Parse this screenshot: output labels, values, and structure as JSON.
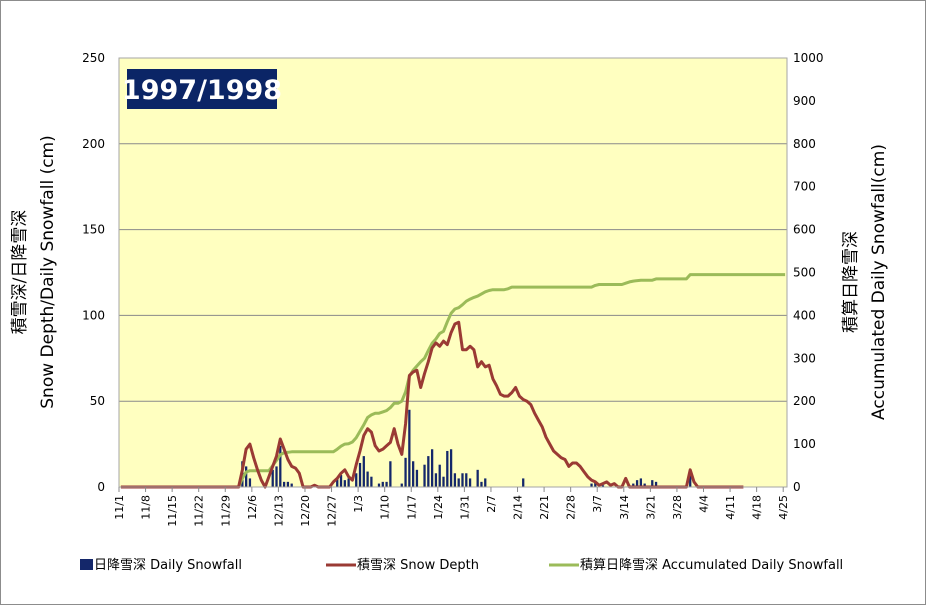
{
  "chart_data": {
    "type": "bar+line",
    "title": "1997/1998",
    "ylabel_left_line1": "積雪深/日降雪深",
    "ylabel_left_line2": "Snow Depth/Daily Snowfall (cm)",
    "ylabel_right_line1": "積算日降雪深",
    "ylabel_right_line2": "Accumulated Daily Snowfall(cm)",
    "ylim_left": [
      0,
      250
    ],
    "yticks_left": [
      0,
      50,
      100,
      150,
      200,
      250
    ],
    "ylim_right": [
      0,
      1000
    ],
    "yticks_right": [
      0,
      100,
      200,
      300,
      400,
      500,
      600,
      700,
      800,
      900,
      1000
    ],
    "x_tick_labels": [
      "11/1",
      "11/8",
      "11/15",
      "11/22",
      "11/29",
      "12/6",
      "12/13",
      "12/20",
      "12/27",
      "1/3",
      "1/10",
      "1/17",
      "1/24",
      "1/31",
      "2/7",
      "2/14",
      "2/21",
      "2/28",
      "3/7",
      "3/14",
      "3/21",
      "3/28",
      "4/4",
      "4/11",
      "4/18",
      "4/25"
    ],
    "x_start": "11/1",
    "day_count": 176,
    "grid": true,
    "legend_position": "bottom",
    "colors": {
      "plot_background": "#ffffc0",
      "daily_snowfall": "#14276a",
      "snow_depth": "#9a3a34",
      "accumulated": "#9bbb59",
      "badge": "#0b2566"
    },
    "series": [
      {
        "name": "日降雪深 Daily Snowfall",
        "type": "bar",
        "axis": "left",
        "points": [
          [
            32,
            15
          ],
          [
            33,
            12
          ],
          [
            34,
            5
          ],
          [
            40,
            10
          ],
          [
            41,
            12
          ],
          [
            42,
            24
          ],
          [
            43,
            3
          ],
          [
            44,
            3
          ],
          [
            45,
            2
          ],
          [
            57,
            5
          ],
          [
            58,
            7
          ],
          [
            59,
            4
          ],
          [
            60,
            5
          ],
          [
            62,
            8
          ],
          [
            63,
            14
          ],
          [
            64,
            18
          ],
          [
            65,
            9
          ],
          [
            66,
            6
          ],
          [
            68,
            2
          ],
          [
            69,
            3
          ],
          [
            70,
            3
          ],
          [
            71,
            15
          ],
          [
            74,
            2
          ],
          [
            75,
            17
          ],
          [
            76,
            45
          ],
          [
            77,
            15
          ],
          [
            78,
            10
          ],
          [
            80,
            13
          ],
          [
            81,
            18
          ],
          [
            82,
            22
          ],
          [
            83,
            8
          ],
          [
            84,
            13
          ],
          [
            85,
            6
          ],
          [
            86,
            21
          ],
          [
            87,
            22
          ],
          [
            88,
            8
          ],
          [
            89,
            5
          ],
          [
            90,
            8
          ],
          [
            91,
            8
          ],
          [
            92,
            5
          ],
          [
            94,
            10
          ],
          [
            95,
            3
          ],
          [
            96,
            5
          ],
          [
            106,
            5
          ],
          [
            124,
            2
          ],
          [
            125,
            3
          ],
          [
            127,
            1
          ],
          [
            135,
            2
          ],
          [
            136,
            4
          ],
          [
            137,
            5
          ],
          [
            138,
            2
          ],
          [
            140,
            4
          ],
          [
            141,
            3
          ],
          [
            150,
            10
          ]
        ]
      },
      {
        "name": "積雪深 Snow Depth",
        "type": "line",
        "axis": "left",
        "points": [
          [
            0,
            0
          ],
          [
            31,
            0
          ],
          [
            32,
            10
          ],
          [
            33,
            22
          ],
          [
            34,
            25
          ],
          [
            35,
            17
          ],
          [
            36,
            10
          ],
          [
            37,
            4
          ],
          [
            38,
            0
          ],
          [
            40,
            12
          ],
          [
            41,
            18
          ],
          [
            42,
            28
          ],
          [
            43,
            22
          ],
          [
            44,
            16
          ],
          [
            45,
            12
          ],
          [
            46,
            11
          ],
          [
            47,
            8
          ],
          [
            48,
            0
          ],
          [
            50,
            0
          ],
          [
            51,
            1
          ],
          [
            52,
            0
          ],
          [
            55,
            0
          ],
          [
            56,
            3
          ],
          [
            57,
            5
          ],
          [
            58,
            8
          ],
          [
            59,
            10
          ],
          [
            60,
            6
          ],
          [
            61,
            4
          ],
          [
            62,
            13
          ],
          [
            63,
            21
          ],
          [
            64,
            30
          ],
          [
            65,
            34
          ],
          [
            66,
            32
          ],
          [
            67,
            24
          ],
          [
            68,
            21
          ],
          [
            69,
            22
          ],
          [
            70,
            24
          ],
          [
            71,
            26
          ],
          [
            72,
            34
          ],
          [
            73,
            25
          ],
          [
            74,
            19
          ],
          [
            75,
            37
          ],
          [
            76,
            65
          ],
          [
            77,
            67
          ],
          [
            78,
            68
          ],
          [
            79,
            58
          ],
          [
            80,
            66
          ],
          [
            81,
            73
          ],
          [
            82,
            81
          ],
          [
            83,
            84
          ],
          [
            84,
            82
          ],
          [
            85,
            85
          ],
          [
            86,
            83
          ],
          [
            87,
            90
          ],
          [
            88,
            95
          ],
          [
            89,
            96
          ],
          [
            90,
            80
          ],
          [
            91,
            80
          ],
          [
            92,
            82
          ],
          [
            93,
            80
          ],
          [
            94,
            70
          ],
          [
            95,
            73
          ],
          [
            96,
            70
          ],
          [
            97,
            71
          ],
          [
            98,
            63
          ],
          [
            99,
            59
          ],
          [
            100,
            54
          ],
          [
            101,
            53
          ],
          [
            102,
            53
          ],
          [
            103,
            55
          ],
          [
            104,
            58
          ],
          [
            105,
            53
          ],
          [
            106,
            51
          ],
          [
            107,
            50
          ],
          [
            108,
            48
          ],
          [
            109,
            43
          ],
          [
            110,
            39
          ],
          [
            111,
            35
          ],
          [
            112,
            29
          ],
          [
            113,
            25
          ],
          [
            114,
            21
          ],
          [
            115,
            19
          ],
          [
            116,
            17
          ],
          [
            117,
            16
          ],
          [
            118,
            12
          ],
          [
            119,
            14
          ],
          [
            120,
            14
          ],
          [
            121,
            12
          ],
          [
            122,
            9
          ],
          [
            123,
            6
          ],
          [
            124,
            4
          ],
          [
            125,
            3
          ],
          [
            126,
            1
          ],
          [
            127,
            2
          ],
          [
            128,
            3
          ],
          [
            129,
            1
          ],
          [
            130,
            2
          ],
          [
            131,
            0
          ],
          [
            132,
            0
          ],
          [
            133,
            5
          ],
          [
            134,
            0
          ],
          [
            149,
            0
          ],
          [
            150,
            10
          ],
          [
            151,
            3
          ],
          [
            152,
            0
          ],
          [
            164,
            0
          ]
        ]
      },
      {
        "name": "積算日降雪深 Accumulated Daily Snowfall",
        "type": "line",
        "axis": "right",
        "points": [
          [
            0,
            0
          ],
          [
            31,
            0
          ],
          [
            32,
            20
          ],
          [
            33,
            35
          ],
          [
            34,
            38
          ],
          [
            39,
            38
          ],
          [
            40,
            50
          ],
          [
            41,
            62
          ],
          [
            42,
            75
          ],
          [
            43,
            80
          ],
          [
            44,
            81
          ],
          [
            45,
            82
          ],
          [
            56,
            82
          ],
          [
            57,
            88
          ],
          [
            58,
            95
          ],
          [
            59,
            100
          ],
          [
            60,
            101
          ],
          [
            61,
            105
          ],
          [
            62,
            115
          ],
          [
            63,
            130
          ],
          [
            64,
            145
          ],
          [
            65,
            162
          ],
          [
            66,
            168
          ],
          [
            67,
            172
          ],
          [
            68,
            172
          ],
          [
            69,
            175
          ],
          [
            70,
            178
          ],
          [
            71,
            185
          ],
          [
            72,
            195
          ],
          [
            73,
            195
          ],
          [
            74,
            200
          ],
          [
            75,
            222
          ],
          [
            76,
            258
          ],
          [
            77,
            272
          ],
          [
            78,
            282
          ],
          [
            79,
            292
          ],
          [
            80,
            300
          ],
          [
            81,
            318
          ],
          [
            82,
            335
          ],
          [
            83,
            345
          ],
          [
            84,
            358
          ],
          [
            85,
            363
          ],
          [
            86,
            385
          ],
          [
            87,
            405
          ],
          [
            88,
            415
          ],
          [
            89,
            418
          ],
          [
            90,
            425
          ],
          [
            91,
            433
          ],
          [
            92,
            438
          ],
          [
            93,
            442
          ],
          [
            94,
            445
          ],
          [
            95,
            450
          ],
          [
            96,
            455
          ],
          [
            97,
            458
          ],
          [
            98,
            460
          ],
          [
            99,
            460
          ],
          [
            100,
            460
          ],
          [
            101,
            460
          ],
          [
            102,
            462
          ],
          [
            103,
            466
          ],
          [
            124,
            466
          ],
          [
            125,
            470
          ],
          [
            126,
            472
          ],
          [
            132,
            472
          ],
          [
            133,
            475
          ],
          [
            134,
            478
          ],
          [
            135,
            480
          ],
          [
            137,
            482
          ],
          [
            140,
            482
          ],
          [
            141,
            485
          ],
          [
            149,
            485
          ],
          [
            150,
            495
          ],
          [
            175,
            495
          ]
        ]
      }
    ]
  }
}
